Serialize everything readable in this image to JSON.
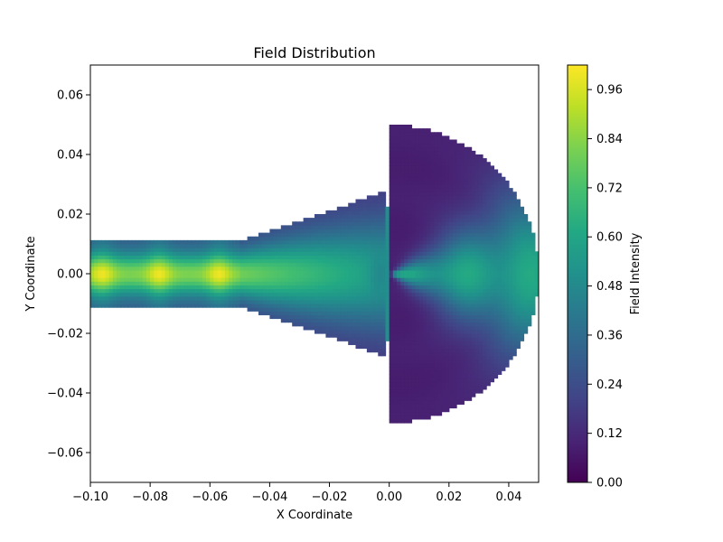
{
  "chart_data": {
    "type": "heatmap",
    "title": "Field Distribution",
    "xlabel": "X Coordinate",
    "ylabel": "Y Coordinate",
    "xlim": [
      -0.1,
      0.05
    ],
    "ylim": [
      -0.07,
      0.07
    ],
    "xticks": [
      -0.1,
      -0.08,
      -0.06,
      -0.04,
      -0.02,
      0.0,
      0.02,
      0.04
    ],
    "xtick_labels": [
      "−0.10",
      "−0.08",
      "−0.06",
      "−0.04",
      "−0.02",
      "0.00",
      "0.02",
      "0.04"
    ],
    "yticks": [
      -0.06,
      -0.04,
      -0.02,
      0.0,
      0.02,
      0.04,
      0.06
    ],
    "ytick_labels": [
      "−0.06",
      "−0.04",
      "−0.02",
      "0.00",
      "0.02",
      "0.04",
      "0.06"
    ],
    "colorbar": {
      "label": "Field Intensity",
      "range": [
        0,
        1.02
      ],
      "ticks": [
        0.0,
        0.12,
        0.24,
        0.36,
        0.48,
        0.6,
        0.72,
        0.84,
        0.96
      ],
      "tick_labels": [
        "0.00",
        "0.12",
        "0.24",
        "0.36",
        "0.48",
        "0.60",
        "0.72",
        "0.84",
        "0.96"
      ],
      "colormap": "viridis"
    },
    "grid": false,
    "geometry": {
      "waveguide": {
        "x": [
          -0.1,
          -0.05
        ],
        "half_width": 0.011
      },
      "taper": {
        "x": [
          -0.05,
          -0.0015
        ],
        "half_width_end": 0.0275
      },
      "gap_notch": {
        "x": [
          -0.0015,
          0.0
        ],
        "y_abs": [
          0.0225,
          0.05
        ]
      },
      "horn": {
        "center": [
          0.0,
          0.0
        ],
        "radius": 0.05
      }
    },
    "field_features": {
      "peak_maxima_x": [
        -0.096,
        -0.077,
        -0.057
      ],
      "peak_value": 1.0,
      "aperture_value": 0.52
    }
  }
}
